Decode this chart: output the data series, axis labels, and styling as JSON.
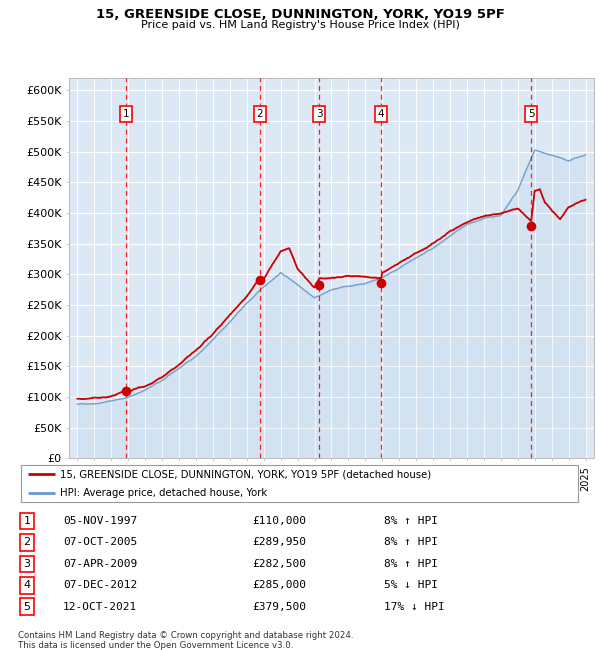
{
  "title1": "15, GREENSIDE CLOSE, DUNNINGTON, YORK, YO19 5PF",
  "title2": "Price paid vs. HM Land Registry's House Price Index (HPI)",
  "bg_color": "#dce9f5",
  "grid_color": "#ffffff",
  "hpi_color": "#6699cc",
  "price_color": "#cc0000",
  "ylim": [
    0,
    620000
  ],
  "yticks": [
    0,
    50000,
    100000,
    150000,
    200000,
    250000,
    300000,
    350000,
    400000,
    450000,
    500000,
    550000,
    600000
  ],
  "ytick_labels": [
    "£0",
    "£50K",
    "£100K",
    "£150K",
    "£200K",
    "£250K",
    "£300K",
    "£350K",
    "£400K",
    "£450K",
    "£500K",
    "£550K",
    "£600K"
  ],
  "xlim_start": 1994.5,
  "xlim_end": 2025.5,
  "sales": [
    {
      "num": 1,
      "year": 1997.85,
      "price": 110000,
      "label": "1"
    },
    {
      "num": 2,
      "year": 2005.77,
      "price": 289950,
      "label": "2"
    },
    {
      "num": 3,
      "year": 2009.27,
      "price": 282500,
      "label": "3"
    },
    {
      "num": 4,
      "year": 2012.93,
      "price": 285000,
      "label": "4"
    },
    {
      "num": 5,
      "year": 2021.79,
      "price": 379500,
      "label": "5"
    }
  ],
  "legend_line1": "15, GREENSIDE CLOSE, DUNNINGTON, YORK, YO19 5PF (detached house)",
  "legend_line2": "HPI: Average price, detached house, York",
  "table_rows": [
    {
      "num": "1",
      "date": "05-NOV-1997",
      "price": "£110,000",
      "hpi": "8% ↑ HPI"
    },
    {
      "num": "2",
      "date": "07-OCT-2005",
      "price": "£289,950",
      "hpi": "8% ↑ HPI"
    },
    {
      "num": "3",
      "date": "07-APR-2009",
      "price": "£282,500",
      "hpi": "8% ↑ HPI"
    },
    {
      "num": "4",
      "date": "07-DEC-2012",
      "price": "£285,000",
      "hpi": "5% ↓ HPI"
    },
    {
      "num": "5",
      "date": "12-OCT-2021",
      "price": "£379,500",
      "hpi": "17% ↓ HPI"
    }
  ],
  "footnote1": "Contains HM Land Registry data © Crown copyright and database right 2024.",
  "footnote2": "This data is licensed under the Open Government Licence v3.0."
}
